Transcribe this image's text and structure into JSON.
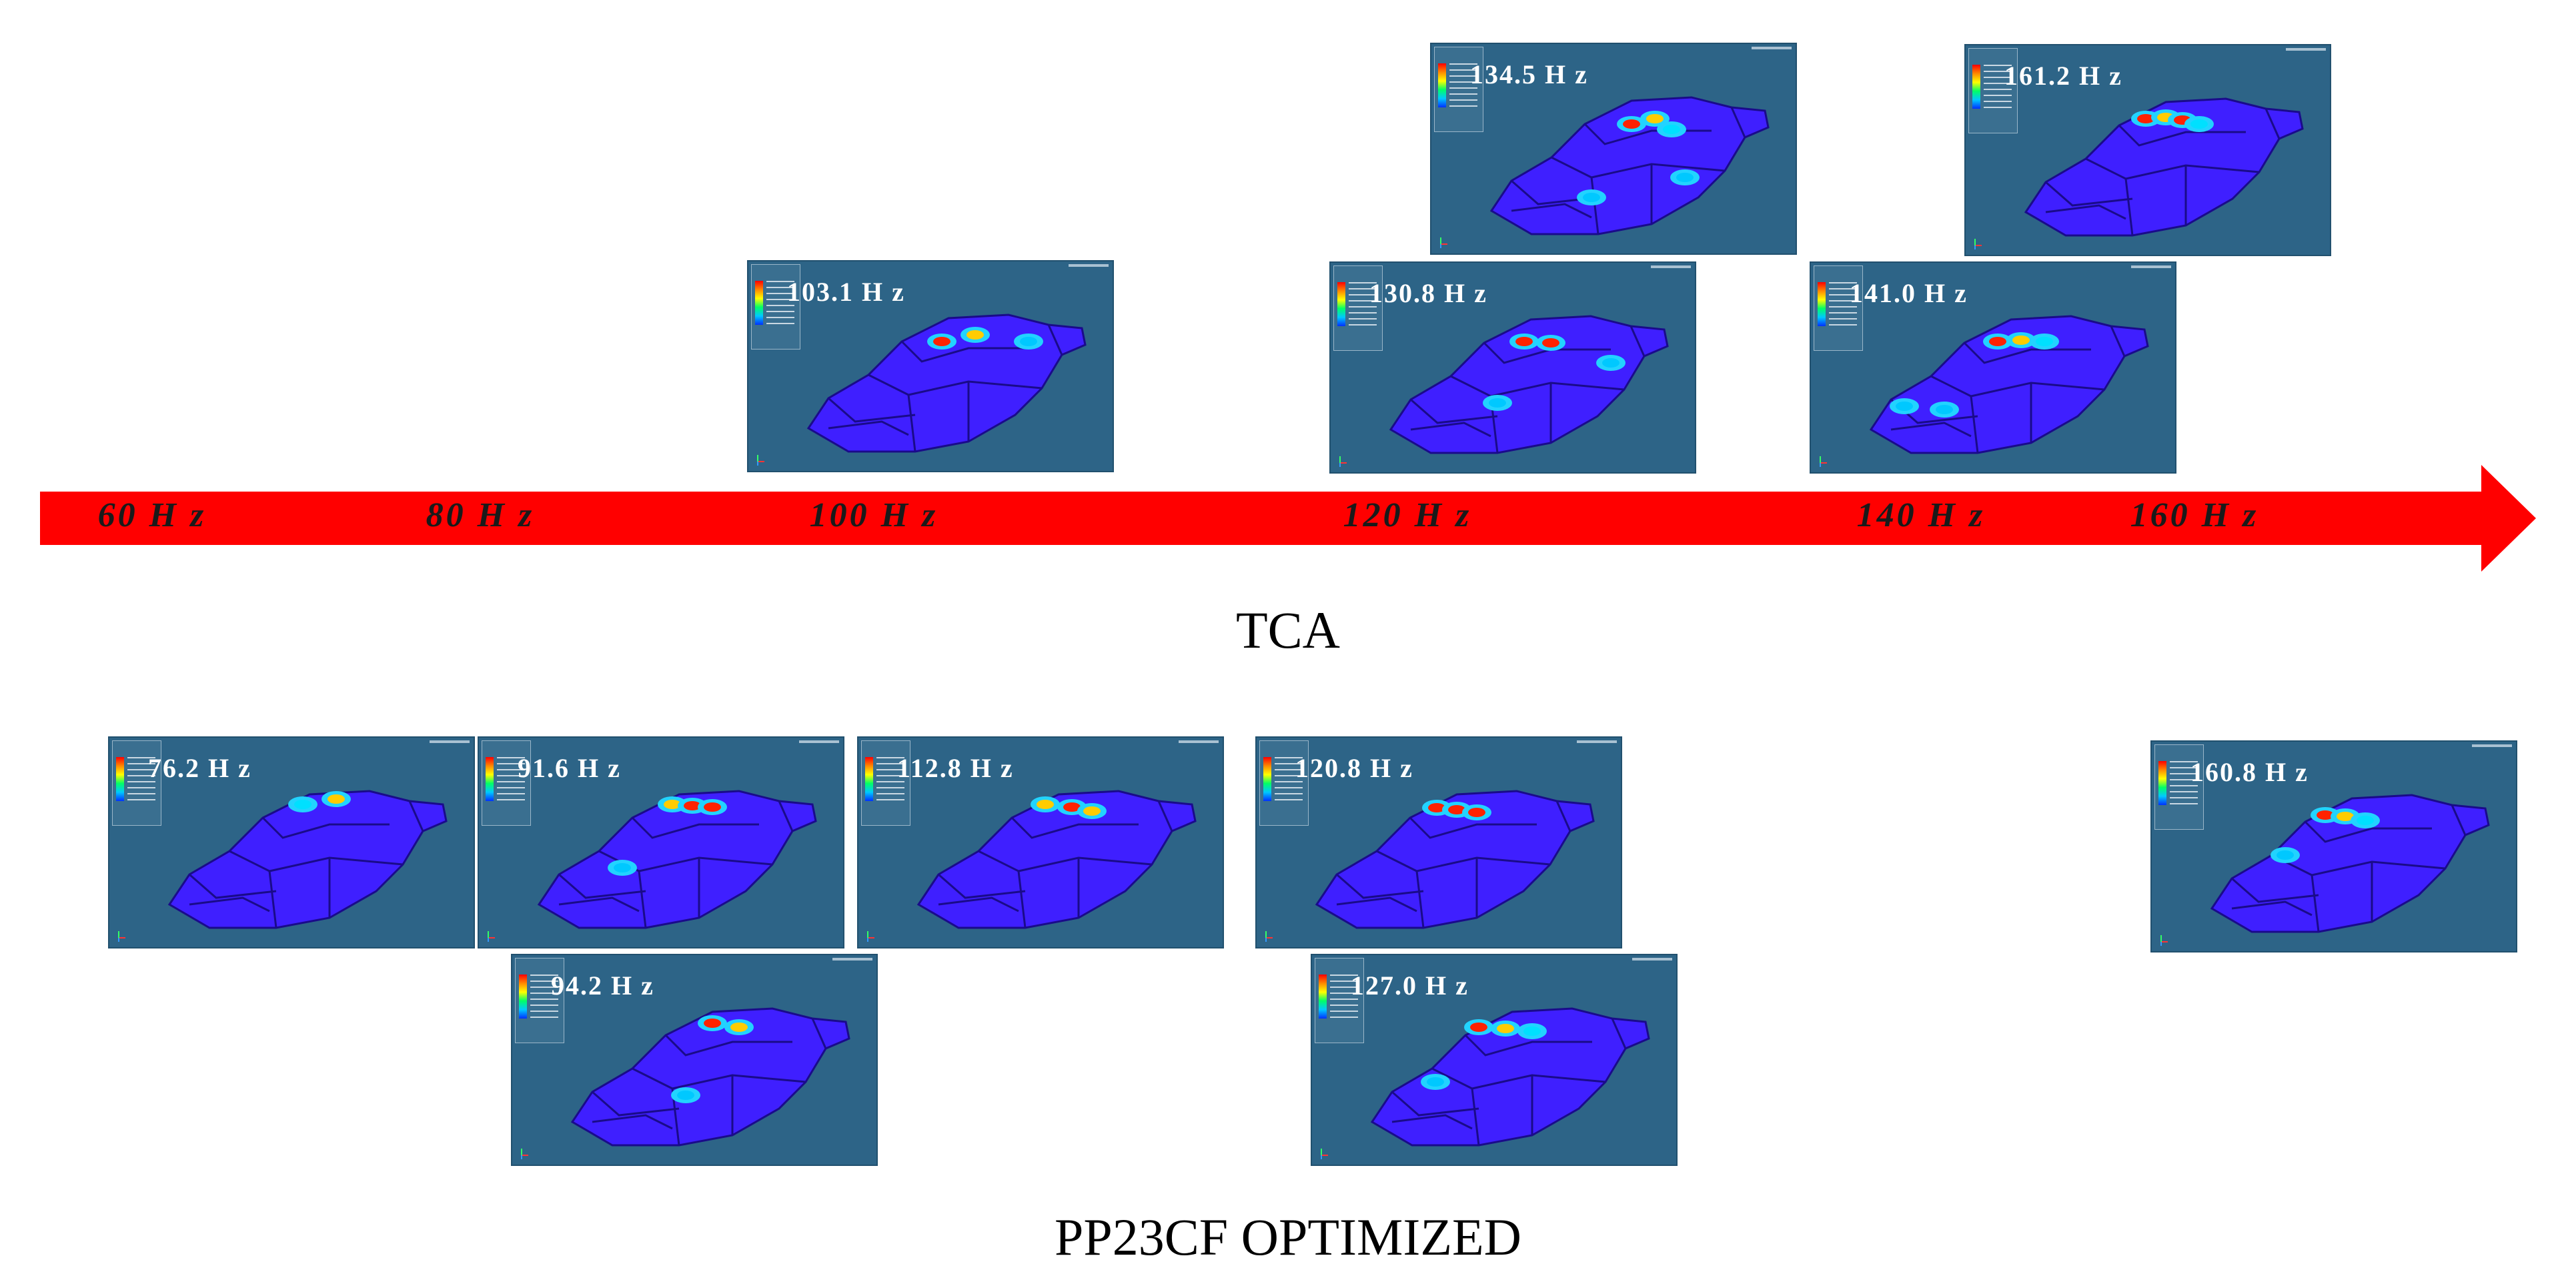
{
  "axis": {
    "ticks": [
      "60 H z",
      "80 H z",
      "100 H z",
      "120 H z",
      "140 H z",
      "160 H z"
    ]
  },
  "sections": {
    "tca_title": "TCA",
    "pp_title": "PP23CF OPTIMIZED"
  },
  "colors": {
    "arrow": "#ff0000",
    "panel_background": "#2d6487",
    "car_body": "#3f1fff",
    "hot_mode": "#ff0000"
  },
  "tca_modes": [
    {
      "label": "134.5 H z"
    },
    {
      "label": "161.2 H z"
    },
    {
      "label": "103.1 H z"
    },
    {
      "label": "130.8 H z"
    },
    {
      "label": "141.0 H z"
    }
  ],
  "pp_modes": [
    {
      "label": "76.2 H z"
    },
    {
      "label": "91.6 H z"
    },
    {
      "label": "112.8 H z"
    },
    {
      "label": "120.8 H z"
    },
    {
      "label": "160.8 H z"
    },
    {
      "label": "94.2 H z"
    },
    {
      "label": "127.0 H z"
    }
  ]
}
